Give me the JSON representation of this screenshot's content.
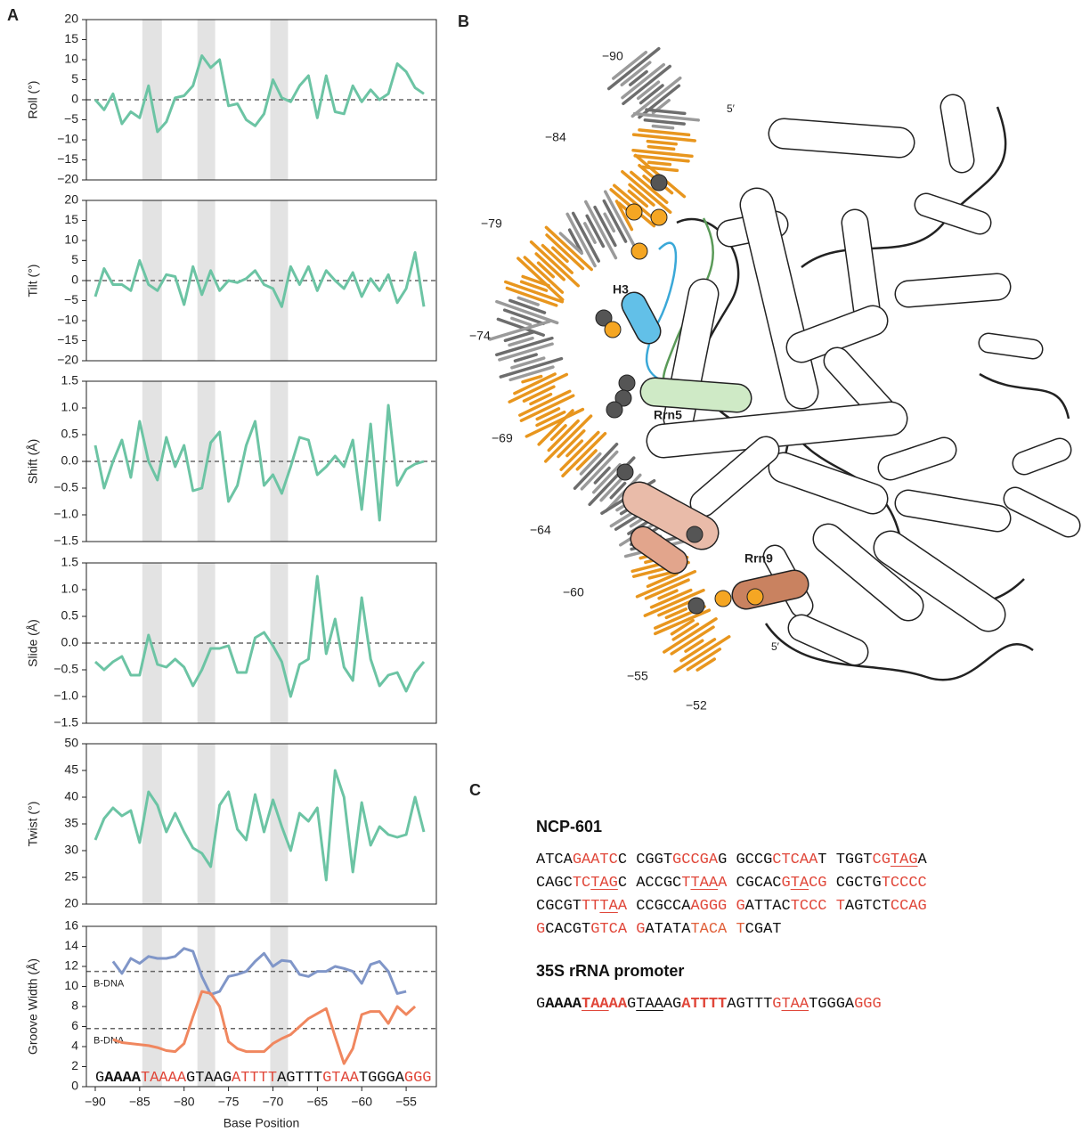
{
  "panel_labels": [
    "A",
    "B",
    "C"
  ],
  "chart_data": [
    {
      "type": "line",
      "ylabel": "Roll (°)",
      "xlim": [
        -91,
        -51.6
      ],
      "ylim": [
        -20,
        20
      ],
      "yticks": [
        {
          "value": -20,
          "label": "−20"
        },
        {
          "value": -15,
          "label": "−15"
        },
        {
          "value": -10,
          "label": "−10"
        },
        {
          "value": -5,
          "label": "−5"
        },
        0,
        5,
        10,
        15,
        20
      ],
      "bands": [
        [
          -84.7,
          -82.5
        ],
        [
          -78.5,
          -76.5
        ],
        [
          -70.3,
          -68.3
        ]
      ],
      "reference_lines": [
        {
          "value": 0,
          "color": "#666666"
        }
      ],
      "x": [
        -90,
        -89,
        -88,
        -87,
        -86,
        -85,
        -84,
        -83,
        -82,
        -81,
        -80,
        -79,
        -78,
        -77,
        -76,
        -75,
        -74,
        -73,
        -72,
        -71,
        -70,
        -69,
        -68,
        -67,
        -66,
        -65,
        -64,
        -63,
        -62,
        -61,
        -60,
        -59,
        -58,
        -57,
        -56,
        -55,
        -54,
        -53
      ],
      "series": [
        {
          "color": "#6cc4a4",
          "values": [
            0,
            -2.5,
            1.5,
            -6,
            -3,
            -4.5,
            3.5,
            -8,
            -5.5,
            0.5,
            1,
            3.5,
            11,
            8,
            10,
            -1.5,
            -1,
            -5,
            -6.5,
            -3.5,
            5,
            0.5,
            -0.5,
            3.5,
            6,
            -4.5,
            6,
            -3,
            -3.5,
            3.5,
            -0.5,
            2.5,
            0,
            1.5,
            9,
            7,
            3,
            1.5
          ]
        }
      ]
    },
    {
      "type": "line",
      "ylabel": "Tilt (°)",
      "xlim": [
        -91,
        -51.6
      ],
      "ylim": [
        -20,
        20
      ],
      "yticks": [
        {
          "value": -20,
          "label": "−20"
        },
        {
          "value": -15,
          "label": "−15"
        },
        {
          "value": -10,
          "label": "−10"
        },
        {
          "value": -5,
          "label": "−5"
        },
        0,
        5,
        10,
        15,
        20
      ],
      "bands": [
        [
          -84.7,
          -82.5
        ],
        [
          -78.5,
          -76.5
        ],
        [
          -70.3,
          -68.3
        ]
      ],
      "reference_lines": [
        {
          "value": 0,
          "color": "#666666"
        }
      ],
      "x": [
        -90,
        -89,
        -88,
        -87,
        -86,
        -85,
        -84,
        -83,
        -82,
        -81,
        -80,
        -79,
        -78,
        -77,
        -76,
        -75,
        -74,
        -73,
        -72,
        -71,
        -70,
        -69,
        -68,
        -67,
        -66,
        -65,
        -64,
        -63,
        -62,
        -61,
        -60,
        -59,
        -58,
        -57,
        -56,
        -55,
        -54,
        -53
      ],
      "series": [
        {
          "color": "#6cc4a4",
          "values": [
            -4,
            3,
            -1,
            -1,
            -2.5,
            5,
            -1,
            -2.5,
            1.5,
            1,
            -6,
            3.5,
            -3.5,
            2.5,
            -2.5,
            0,
            -0.5,
            0.5,
            2.5,
            -1,
            -2,
            -6.5,
            3.5,
            -1,
            3.5,
            -2.5,
            2.5,
            0,
            -2,
            2,
            -4,
            0.5,
            -2.5,
            1.5,
            -5.5,
            -2,
            7,
            -6.5
          ]
        }
      ]
    },
    {
      "type": "line",
      "ylabel": "Shift (Å)",
      "xlim": [
        -91,
        -51.6
      ],
      "ylim": [
        -1.5,
        1.5
      ],
      "yticks": [
        {
          "value": -1.5,
          "label": "−1.5"
        },
        {
          "value": -1,
          "label": "−1.0"
        },
        {
          "value": -0.5,
          "label": "−0.5"
        },
        {
          "value": 0,
          "label": "0.0"
        },
        0.5,
        {
          "value": 1,
          "label": "1.0"
        },
        1.5
      ],
      "bands": [
        [
          -84.7,
          -82.5
        ],
        [
          -78.5,
          -76.5
        ],
        [
          -70.3,
          -68.3
        ]
      ],
      "reference_lines": [
        {
          "value": 0,
          "color": "#666666"
        }
      ],
      "x": [
        -90,
        -89,
        -88,
        -87,
        -86,
        -85,
        -84,
        -83,
        -82,
        -81,
        -80,
        -79,
        -78,
        -77,
        -76,
        -75,
        -74,
        -73,
        -72,
        -71,
        -70,
        -69,
        -68,
        -67,
        -66,
        -65,
        -64,
        -63,
        -62,
        -61,
        -60,
        -59,
        -58,
        -57,
        -56,
        -55,
        -54,
        -53
      ],
      "series": [
        {
          "color": "#6cc4a4",
          "values": [
            0.3,
            -0.5,
            0,
            0.4,
            -0.3,
            0.75,
            0,
            -0.35,
            0.45,
            -0.1,
            0.3,
            -0.55,
            -0.5,
            0.35,
            0.55,
            -0.75,
            -0.45,
            0.3,
            0.75,
            -0.45,
            -0.25,
            -0.6,
            -0.1,
            0.45,
            0.4,
            -0.25,
            -0.1,
            0.1,
            -0.1,
            0.4,
            -0.9,
            0.7,
            -1.1,
            1.05,
            -0.45,
            -0.15,
            -0.05,
            0
          ]
        }
      ]
    },
    {
      "type": "line",
      "ylabel": "Slide (Å)",
      "xlim": [
        -91,
        -51.6
      ],
      "ylim": [
        -1.5,
        1.5
      ],
      "yticks": [
        {
          "value": -1.5,
          "label": "−1.5"
        },
        {
          "value": -1,
          "label": "−1.0"
        },
        {
          "value": -0.5,
          "label": "−0.5"
        },
        {
          "value": 0,
          "label": "0.0"
        },
        0.5,
        {
          "value": 1,
          "label": "1.0"
        },
        1.5
      ],
      "bands": [
        [
          -84.7,
          -82.5
        ],
        [
          -78.5,
          -76.5
        ],
        [
          -70.3,
          -68.3
        ]
      ],
      "reference_lines": [
        {
          "value": 0,
          "color": "#666666"
        }
      ],
      "x": [
        -90,
        -89,
        -88,
        -87,
        -86,
        -85,
        -84,
        -83,
        -82,
        -81,
        -80,
        -79,
        -78,
        -77,
        -76,
        -75,
        -74,
        -73,
        -72,
        -71,
        -70,
        -69,
        -68,
        -67,
        -66,
        -65,
        -64,
        -63,
        -62,
        -61,
        -60,
        -59,
        -58,
        -57,
        -56,
        -55,
        -54,
        -53
      ],
      "series": [
        {
          "color": "#6cc4a4",
          "values": [
            -0.35,
            -0.5,
            -0.35,
            -0.25,
            -0.6,
            -0.6,
            0.15,
            -0.4,
            -0.45,
            -0.3,
            -0.45,
            -0.8,
            -0.5,
            -0.1,
            -0.1,
            -0.05,
            -0.55,
            -0.55,
            0.1,
            0.2,
            -0.05,
            -0.35,
            -1.0,
            -0.4,
            -0.3,
            1.25,
            -0.2,
            0.45,
            -0.45,
            -0.7,
            0.85,
            -0.3,
            -0.8,
            -0.6,
            -0.55,
            -0.9,
            -0.55,
            -0.35
          ]
        }
      ]
    },
    {
      "type": "line",
      "ylabel": "Twist (°)",
      "xlim": [
        -91,
        -51.6
      ],
      "ylim": [
        20,
        50
      ],
      "yticks": [
        20,
        25,
        30,
        35,
        40,
        45,
        50
      ],
      "bands": [
        [
          -84.7,
          -82.5
        ],
        [
          -78.5,
          -76.5
        ],
        [
          -70.3,
          -68.3
        ]
      ],
      "x": [
        -90,
        -89,
        -88,
        -87,
        -86,
        -85,
        -84,
        -83,
        -82,
        -81,
        -80,
        -79,
        -78,
        -77,
        -76,
        -75,
        -74,
        -73,
        -72,
        -71,
        -70,
        -69,
        -68,
        -67,
        -66,
        -65,
        -64,
        -63,
        -62,
        -61,
        -60,
        -59,
        -58,
        -57,
        -56,
        -55,
        -54,
        -53
      ],
      "series": [
        {
          "color": "#6cc4a4",
          "values": [
            32,
            36,
            38,
            36.5,
            37.5,
            31.5,
            41,
            38.5,
            33.5,
            37,
            33.5,
            30.5,
            29.5,
            27,
            38.5,
            41,
            34,
            32,
            40.5,
            33.5,
            39.5,
            34.5,
            30,
            37,
            35.5,
            38,
            24.5,
            45,
            40,
            26,
            39,
            31,
            34.5,
            33,
            32.5,
            33,
            40,
            33.5
          ]
        }
      ]
    },
    {
      "type": "line",
      "ylabel": "Groove Width (Å)",
      "xlabel": "Base Position",
      "xlim": [
        -91,
        -51.6
      ],
      "ylim": [
        0,
        16
      ],
      "yticks": [
        0,
        2,
        4,
        6,
        8,
        10,
        12,
        14,
        16
      ],
      "xticks": [
        {
          "value": -90,
          "label": "−90"
        },
        {
          "value": -85,
          "label": "−85"
        },
        {
          "value": -80,
          "label": "−80"
        },
        {
          "value": -75,
          "label": "−75"
        },
        {
          "value": -70,
          "label": "−70"
        },
        {
          "value": -65,
          "label": "−65"
        },
        {
          "value": -60,
          "label": "−60"
        },
        {
          "value": -55,
          "label": "−55"
        }
      ],
      "bands": [
        [
          -84.7,
          -82.5
        ],
        [
          -78.5,
          -76.5
        ],
        [
          -70.3,
          -68.3
        ]
      ],
      "reference_lines": [
        {
          "value": 11.5,
          "label": "B-DNA",
          "color": "#666666"
        },
        {
          "value": 5.8,
          "label": "B-DNA",
          "color": "#666666"
        }
      ],
      "x": [
        -88,
        -87,
        -86,
        -85,
        -84,
        -83,
        -82,
        -81,
        -80,
        -79,
        -78,
        -77,
        -76,
        -75,
        -74,
        -73,
        -72,
        -71,
        -70,
        -69,
        -68,
        -67,
        -66,
        -65,
        -64,
        -63,
        -62,
        -61,
        -60,
        -59,
        -58,
        -57,
        -56,
        -55,
        -54
      ],
      "series": [
        {
          "color": "#8096c8",
          "values": [
            12.5,
            11.3,
            12.8,
            12.3,
            13,
            12.8,
            12.8,
            13,
            13.8,
            13.5,
            11,
            9.2,
            9.5,
            11,
            11.2,
            11.5,
            12.5,
            13.3,
            12,
            12.6,
            12.5,
            11.2,
            11,
            11.5,
            11.5,
            12,
            11.8,
            11.5,
            10.3,
            12.2,
            12.5,
            11.5,
            9.3,
            9.5,
            null
          ]
        },
        {
          "color": "#f0875f",
          "values": [
            4.7,
            4.4,
            4.3,
            4.2,
            4.1,
            3.9,
            3.6,
            3.5,
            4.3,
            7,
            9.5,
            9.3,
            8,
            4.5,
            3.8,
            3.5,
            3.5,
            3.5,
            4.3,
            4.8,
            5.2,
            6,
            6.8,
            7.3,
            7.8,
            5,
            2.3,
            3.8,
            7.2,
            7.5,
            7.5,
            6.3,
            8,
            7.2,
            8
          ]
        }
      ],
      "sequence_annotation": [
        {
          "text": "G"
        },
        {
          "text": "AAAA",
          "bold": true
        },
        {
          "text": "TAAAA",
          "color": "#e0473a"
        },
        {
          "text": "GTAAG"
        },
        {
          "text": "ATTTT",
          "color": "#e0473a"
        },
        {
          "text": "AGTTT"
        },
        {
          "text": "GTAA",
          "color": "#e0473a"
        },
        {
          "text": "TGGGA"
        },
        {
          "text": "GGG",
          "color": "#e0473a"
        }
      ]
    }
  ],
  "structure": {
    "labels": [
      "−90",
      "−84",
      "−79",
      "−74",
      "−69",
      "−64",
      "−60",
      "−55",
      "−52",
      "5′",
      "5′"
    ],
    "proteins": [
      {
        "name": "H3",
        "color": "#3aa8d8"
      },
      {
        "name": "Rrn5",
        "color": "#8cc47e"
      },
      {
        "name": "Rrn9",
        "color": "#c07850"
      }
    ]
  },
  "sequences": [
    {
      "title": "NCP-601",
      "lines": [
        [
          {
            "text": "ATCA"
          },
          {
            "text": "GAATC",
            "color": "#e0473a"
          },
          {
            "text": "C CGGT"
          },
          {
            "text": "GCCGA",
            "color": "#e0473a"
          },
          {
            "text": "G GCCG"
          },
          {
            "text": "CTCAA",
            "color": "#e0473a"
          },
          {
            "text": "T TGGT"
          },
          {
            "text": "CG",
            "color": "#e0473a"
          },
          {
            "text": "TAG",
            "color": "#e0473a",
            "underline": true
          },
          {
            "text": "A"
          }
        ],
        [
          {
            "text": "CAGC"
          },
          {
            "text": "TC",
            "color": "#e0473a"
          },
          {
            "text": "TAG",
            "color": "#e0473a",
            "underline": true
          },
          {
            "text": "C ACCGC"
          },
          {
            "text": "T",
            "color": "#e0473a"
          },
          {
            "text": "TAA",
            "color": "#e0473a",
            "underline": true
          },
          {
            "text": "A",
            "color": "#e0473a"
          },
          {
            "text": " CGCAC"
          },
          {
            "text": "G",
            "color": "#e0473a"
          },
          {
            "text": "TA",
            "color": "#e0473a",
            "underline": true
          },
          {
            "text": "CG",
            "color": "#e0473a"
          },
          {
            "text": " CGCTG"
          },
          {
            "text": "TCCCC",
            "color": "#e0473a"
          }
        ],
        [
          {
            "text": "CGCGT"
          },
          {
            "text": "TT",
            "color": "#e0473a"
          },
          {
            "text": "TA",
            "color": "#e0473a",
            "underline": true
          },
          {
            "text": "A",
            "color": "#e0473a"
          },
          {
            "text": " CCGCCA"
          },
          {
            "text": "AGGG G",
            "color": "#e0473a"
          },
          {
            "text": "ATTAC"
          },
          {
            "text": "TCCC T",
            "color": "#e0473a"
          },
          {
            "text": "AGTCT"
          },
          {
            "text": "CCAG",
            "color": "#e0473a"
          }
        ],
        [
          {
            "text": "G",
            "color": "#e0473a"
          },
          {
            "text": "CACGT"
          },
          {
            "text": "GTCA G",
            "color": "#e0473a"
          },
          {
            "text": "ATATA"
          },
          {
            "text": "TACA T",
            "color": "#e0603a"
          },
          {
            "text": "CGAT"
          }
        ]
      ]
    },
    {
      "title": "35S rRNA promoter",
      "lines": [
        [
          {
            "text": "G"
          },
          {
            "text": "AAAA",
            "bold": true
          },
          {
            "text": "TAA",
            "color": "#e0473a",
            "bold": true,
            "underline": true
          },
          {
            "text": "AA",
            "color": "#e0473a",
            "bold": true
          },
          {
            "text": "G"
          },
          {
            "text": "TAA",
            "underline": true
          },
          {
            "text": "AG"
          },
          {
            "text": "ATTTT",
            "color": "#e0473a",
            "bold": true
          },
          {
            "text": "AGTTT"
          },
          {
            "text": "G",
            "color": "#e0473a"
          },
          {
            "text": "TAA",
            "color": "#e0473a",
            "underline": true
          },
          {
            "text": "TGGGA"
          },
          {
            "text": "GGG",
            "color": "#e0473a"
          }
        ]
      ]
    }
  ]
}
